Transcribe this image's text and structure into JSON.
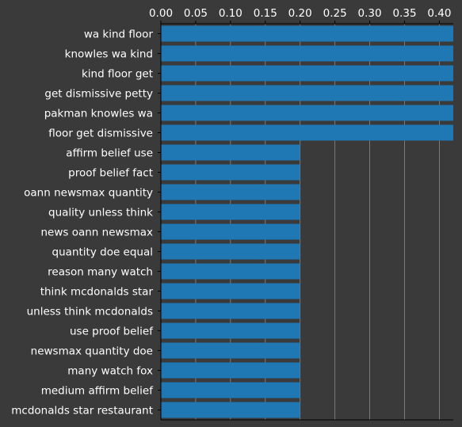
{
  "colors": {
    "background": "#3a3a3a",
    "bar": "#1f77b4",
    "axis": "#000000",
    "grid": "#8a8a8a",
    "text": "#ffffff"
  },
  "chart_data": {
    "type": "bar",
    "orientation": "horizontal",
    "title": "",
    "xlabel": "",
    "ylabel": "",
    "xlim": [
      0,
      0.42
    ],
    "x_ticks": [
      "0.00",
      "0.05",
      "0.10",
      "0.15",
      "0.20",
      "0.25",
      "0.30",
      "0.35",
      "0.40"
    ],
    "x_tick_position": "top",
    "grid": true,
    "categories": [
      "wa kind floor",
      "knowles wa kind",
      "kind floor get",
      "get dismissive petty",
      "pakman knowles wa",
      "floor get dismissive",
      "affirm belief use",
      "proof belief fact",
      "oann newsmax quantity",
      "quality unless think",
      "news oann newsmax",
      "quantity doe equal",
      "reason many watch",
      "think mcdonalds star",
      "unless think mcdonalds",
      "use proof belief",
      "newsmax quantity doe",
      "many watch fox",
      "medium affirm belief",
      "mcdonalds star restaurant"
    ],
    "values": [
      0.42,
      0.42,
      0.42,
      0.42,
      0.42,
      0.42,
      0.2,
      0.2,
      0.2,
      0.2,
      0.2,
      0.2,
      0.2,
      0.2,
      0.2,
      0.2,
      0.2,
      0.2,
      0.2,
      0.2
    ]
  }
}
